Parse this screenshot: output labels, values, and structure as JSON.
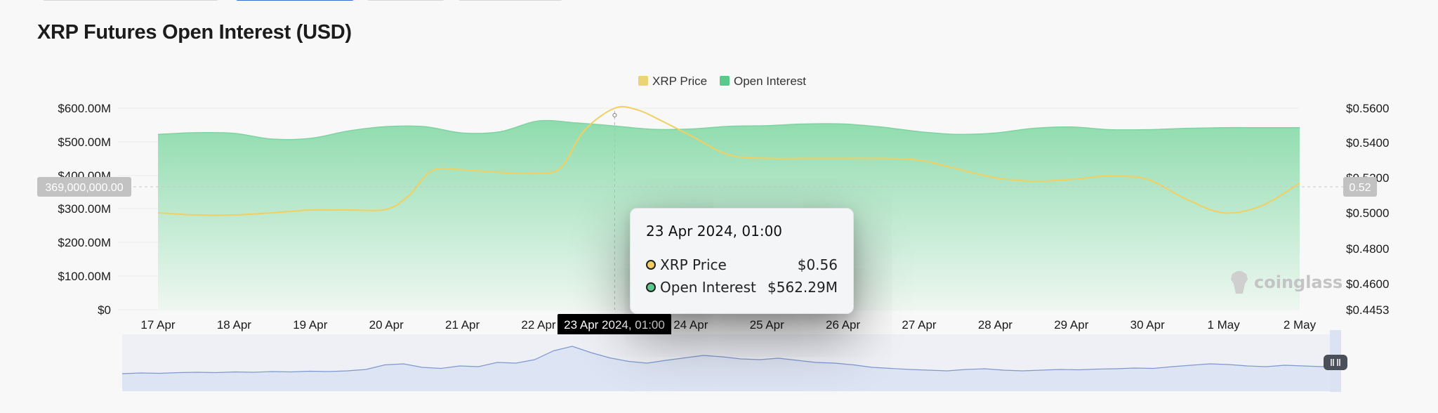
{
  "page": {
    "title": "XRP Futures Open Interest (USD)"
  },
  "colors": {
    "price_line": "#f1cf61",
    "oi_fill_top": "#8fdcae",
    "oi_fill_bottom": "#eef7f1",
    "legend_price": "#ebd376",
    "legend_oi": "#5bc98b",
    "brush_fill": "#dde4f3",
    "brush_line": "#7f98cf"
  },
  "chart_data": {
    "type": "area",
    "title": "XRP Futures Open Interest (USD)",
    "categories": [
      "17 Apr",
      "18 Apr",
      "19 Apr",
      "20 Apr",
      "21 Apr",
      "22 Apr",
      "23 Apr",
      "24 Apr",
      "25 Apr",
      "26 Apr",
      "27 Apr",
      "28 Apr",
      "29 Apr",
      "30 Apr",
      "1 May",
      "2 May"
    ],
    "left_axis": {
      "ticks": [
        "$600.00M",
        "$500.00M",
        "$400.00M",
        "$300.00M",
        "$200.00M",
        "$100.00M",
        "$0"
      ],
      "min": 0,
      "max": 600000000
    },
    "right_axis": {
      "ticks": [
        "$0.5600",
        "$0.5400",
        "$0.5200",
        "$0.5000",
        "$0.4800",
        "$0.4600",
        "$0.4453"
      ],
      "min": 0.4453,
      "max": 0.56
    },
    "legend": {
      "position": "top-center",
      "items": [
        "XRP Price",
        "Open Interest"
      ]
    },
    "series": [
      {
        "name": "Open Interest",
        "axis": "left",
        "x": [
          0,
          0.5,
          1,
          1.5,
          2,
          2.5,
          3,
          3.5,
          4,
          4.5,
          5,
          5.5,
          6,
          6.5,
          7,
          7.5,
          8,
          8.5,
          9,
          9.5,
          10,
          10.5,
          11,
          11.5,
          12,
          12.5,
          13,
          13.5,
          14,
          14.5,
          15
        ],
        "values": [
          522,
          527,
          525,
          508,
          510,
          532,
          545,
          545,
          526,
          530,
          562,
          556,
          547,
          537,
          538,
          546,
          548,
          553,
          553,
          544,
          530,
          522,
          526,
          540,
          544,
          536,
          536,
          540,
          542,
          542,
          542
        ]
      },
      {
        "name": "XRP Price",
        "axis": "right",
        "x": [
          0,
          0.5,
          1,
          1.5,
          2,
          2.5,
          3,
          3.3,
          3.6,
          4,
          4.5,
          5,
          5.3,
          5.6,
          6,
          6.3,
          6.6,
          7,
          7.5,
          8,
          8.5,
          9,
          9.5,
          10,
          10.5,
          11,
          11.5,
          12,
          12.5,
          13,
          13.5,
          14,
          14.5,
          15
        ],
        "values": [
          0.5,
          0.4988,
          0.4988,
          0.5,
          0.5016,
          0.5016,
          0.502,
          0.51,
          0.524,
          0.5245,
          0.523,
          0.5225,
          0.526,
          0.547,
          0.56,
          0.559,
          0.553,
          0.544,
          0.533,
          0.531,
          0.531,
          0.531,
          0.531,
          0.53,
          0.525,
          0.52,
          0.518,
          0.519,
          0.521,
          0.519,
          0.508,
          0.5,
          0.504,
          0.517
        ]
      }
    ],
    "crosshair": {
      "category": "23 Apr",
      "y_left_label": "369,000,000.00",
      "y_right_label": "0.52",
      "x_label": "23 Apr 2024, 01:00"
    },
    "tooltip": {
      "title": "23 Apr 2024, 01:00",
      "rows": [
        {
          "name": "XRP Price",
          "value": "$0.56"
        },
        {
          "name": "Open Interest",
          "value": "$562.29M"
        }
      ]
    },
    "navigator": {
      "values": [
        0.1,
        0.12,
        0.11,
        0.13,
        0.14,
        0.13,
        0.15,
        0.14,
        0.16,
        0.15,
        0.17,
        0.16,
        0.18,
        0.22,
        0.35,
        0.38,
        0.28,
        0.25,
        0.32,
        0.3,
        0.42,
        0.4,
        0.5,
        0.75,
        0.88,
        0.7,
        0.55,
        0.45,
        0.4,
        0.48,
        0.55,
        0.62,
        0.58,
        0.52,
        0.5,
        0.54,
        0.48,
        0.42,
        0.4,
        0.35,
        0.28,
        0.25,
        0.22,
        0.2,
        0.18,
        0.22,
        0.24,
        0.2,
        0.18,
        0.2,
        0.22,
        0.21,
        0.23,
        0.24,
        0.26,
        0.25,
        0.3,
        0.34,
        0.38,
        0.36,
        0.32,
        0.3,
        0.34,
        0.32,
        0.3,
        0.32
      ]
    }
  },
  "watermark": {
    "text": "coinglass"
  }
}
